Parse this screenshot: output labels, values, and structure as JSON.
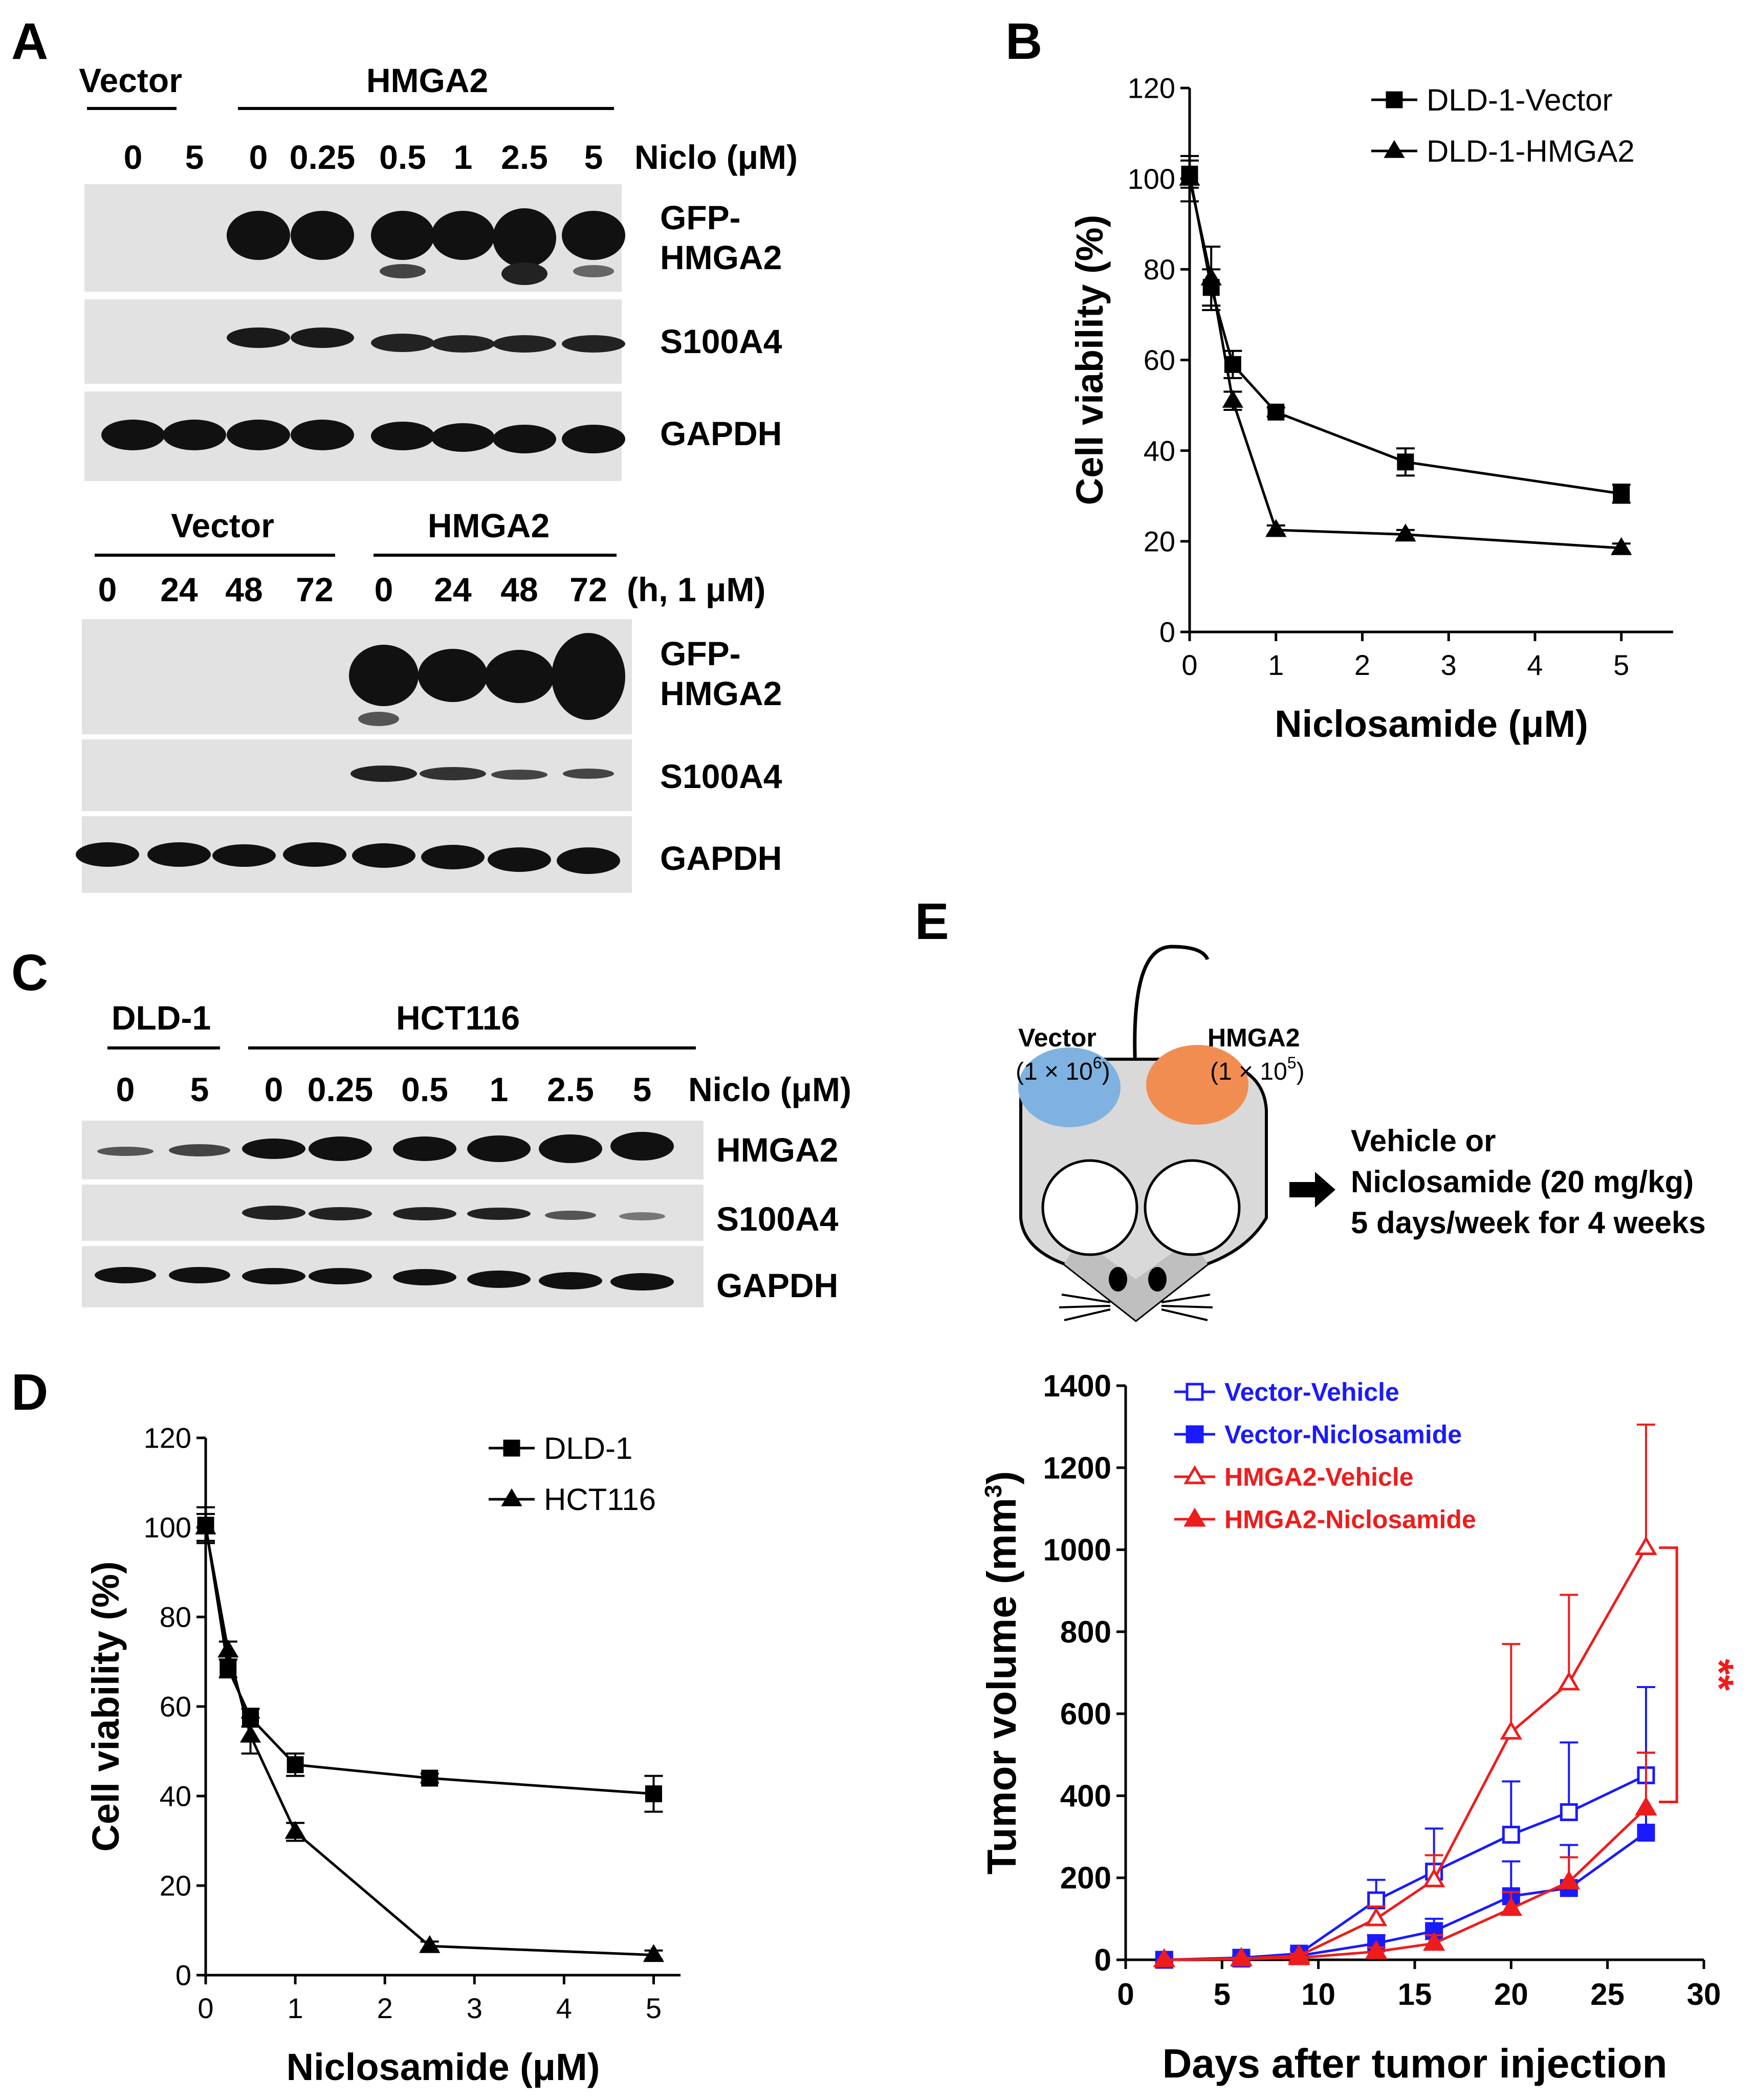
{
  "panels": {
    "A": {
      "letter": "A",
      "top_blot": {
        "group1": "Vector",
        "group2": "HMGA2",
        "lanes": [
          "0",
          "5",
          "0",
          "0.25",
          "0.5",
          "1",
          "2.5",
          "5"
        ],
        "condition": "Niclo (μM)",
        "rows": [
          "GFP-\nHMGA2",
          "S100A4",
          "GAPDH"
        ]
      },
      "bottom_blot": {
        "group1": "Vector",
        "group2": "HMGA2",
        "lanes": [
          "0",
          "24",
          "48",
          "72",
          "0",
          "24",
          "48",
          "72"
        ],
        "condition": "(h, 1 μM)",
        "rows": [
          "GFP-\nHMGA2",
          "S100A4",
          "GAPDH"
        ]
      }
    },
    "C": {
      "letter": "C",
      "group1": "DLD-1",
      "group2": "HCT116",
      "lanes": [
        "0",
        "5",
        "0",
        "0.25",
        "0.5",
        "1",
        "2.5",
        "5"
      ],
      "condition": "Niclo (μM)",
      "rows": [
        "HMGA2",
        "S100A4",
        "GAPDH"
      ]
    },
    "E": {
      "letter": "E",
      "diagram": {
        "left_label": "Vector",
        "left_cells": "(1 × 10",
        "left_exp": "6",
        "right_label": "HMGA2",
        "right_cells": "(1 × 10",
        "right_exp": "5",
        "treatment_line1": "Vehicle or",
        "treatment_line2": "Niclosamide (20 mg/kg)",
        "treatment_line3": "5 days/week for 4 weeks",
        "colors": {
          "vector_tumor": "#7fb2e0",
          "hmga2_tumor": "#f28d52",
          "body": "#d9d9d9"
        }
      },
      "significance": "**"
    }
  },
  "chart_data": [
    {
      "id": "B",
      "panel_letter": "B",
      "type": "line",
      "xlabel": "Niclosamide (μM)",
      "ylabel": "Cell viability (%)",
      "xlim": [
        0,
        5.6
      ],
      "ylim": [
        0,
        120
      ],
      "xticks": [
        0,
        1,
        2,
        3,
        4,
        5
      ],
      "yticks": [
        0,
        20,
        40,
        60,
        80,
        100,
        120
      ],
      "legend_position": "top-right",
      "series": [
        {
          "name": "DLD-1-Vector",
          "marker": "square",
          "color": "#000000",
          "x": [
            0,
            0.25,
            0.5,
            1,
            2.5,
            5
          ],
          "y": [
            101,
            76,
            59,
            48.5,
            37.5,
            30.5
          ],
          "err": [
            3,
            4,
            3,
            1,
            3,
            2
          ]
        },
        {
          "name": "DLD-1-HMGA2",
          "marker": "triangle",
          "color": "#000000",
          "x": [
            0,
            0.25,
            0.5,
            1,
            2.5,
            5
          ],
          "y": [
            100,
            78,
            51,
            22.5,
            21.5,
            18.5
          ],
          "err": [
            5,
            7,
            2,
            1,
            1,
            1
          ]
        }
      ]
    },
    {
      "id": "D",
      "panel_letter": "D",
      "type": "line",
      "xlabel": "Niclosamide (μM)",
      "ylabel": "Cell viability (%)",
      "xlim": [
        0,
        5.3
      ],
      "ylim": [
        0,
        120
      ],
      "xticks": [
        0,
        1,
        2,
        3,
        4,
        5
      ],
      "yticks": [
        0,
        20,
        40,
        60,
        80,
        100,
        120
      ],
      "legend_position": "top-right",
      "series": [
        {
          "name": "DLD-1",
          "marker": "square",
          "color": "#000000",
          "x": [
            0,
            0.25,
            0.5,
            1,
            2.5,
            5
          ],
          "y": [
            100.5,
            68.5,
            57.5,
            47,
            44,
            40.5
          ],
          "err": [
            4,
            2,
            2,
            2.5,
            1,
            4
          ]
        },
        {
          "name": "HCT116",
          "marker": "triangle",
          "color": "#000000",
          "x": [
            0,
            0.25,
            0.5,
            1,
            2.5,
            5
          ],
          "y": [
            100,
            72.5,
            53.5,
            32,
            6.5,
            4.5
          ],
          "err": [
            3,
            2,
            4,
            2,
            1,
            1
          ]
        }
      ]
    },
    {
      "id": "E",
      "type": "line",
      "xlabel": "Days after tumor injection",
      "ylabel": "Tumor volume (mm",
      "ylabel_sup": "3",
      "ylabel_close": ")",
      "xlim": [
        0,
        30
      ],
      "ylim": [
        0,
        1400
      ],
      "xticks": [
        0,
        5,
        10,
        15,
        20,
        25,
        30
      ],
      "yticks": [
        0,
        200,
        400,
        600,
        800,
        1000,
        1200,
        1400
      ],
      "legend_position": "top-left",
      "series": [
        {
          "name": "Vector-Vehicle",
          "marker": "square-open",
          "color": "#1a1aff",
          "x": [
            2,
            6,
            9,
            13,
            16,
            20,
            23,
            27
          ],
          "y": [
            0,
            5,
            15,
            145,
            215,
            305,
            360,
            450
          ],
          "err": [
            0,
            3,
            10,
            50,
            105,
            130,
            170,
            215
          ]
        },
        {
          "name": "Vector-Niclosamide",
          "marker": "square",
          "color": "#1a1aff",
          "x": [
            2,
            6,
            9,
            13,
            16,
            20,
            23,
            27
          ],
          "y": [
            0,
            3,
            10,
            40,
            70,
            155,
            175,
            310
          ],
          "err": [
            0,
            2,
            5,
            20,
            30,
            85,
            105,
            195
          ]
        },
        {
          "name": "HMGA2-Vehicle",
          "marker": "triangle-open",
          "color": "#ee1c1c",
          "x": [
            2,
            6,
            9,
            13,
            16,
            20,
            23,
            27
          ],
          "y": [
            0,
            3,
            10,
            100,
            195,
            555,
            675,
            1005
          ],
          "err": [
            0,
            2,
            5,
            30,
            60,
            215,
            215,
            300
          ]
        },
        {
          "name": "HMGA2-Niclosamide",
          "marker": "triangle",
          "color": "#ee1c1c",
          "x": [
            2,
            6,
            9,
            13,
            16,
            20,
            23,
            27
          ],
          "y": [
            0,
            2,
            5,
            20,
            40,
            125,
            190,
            370
          ],
          "err": [
            0,
            2,
            3,
            10,
            20,
            40,
            60,
            135
          ]
        }
      ]
    }
  ]
}
